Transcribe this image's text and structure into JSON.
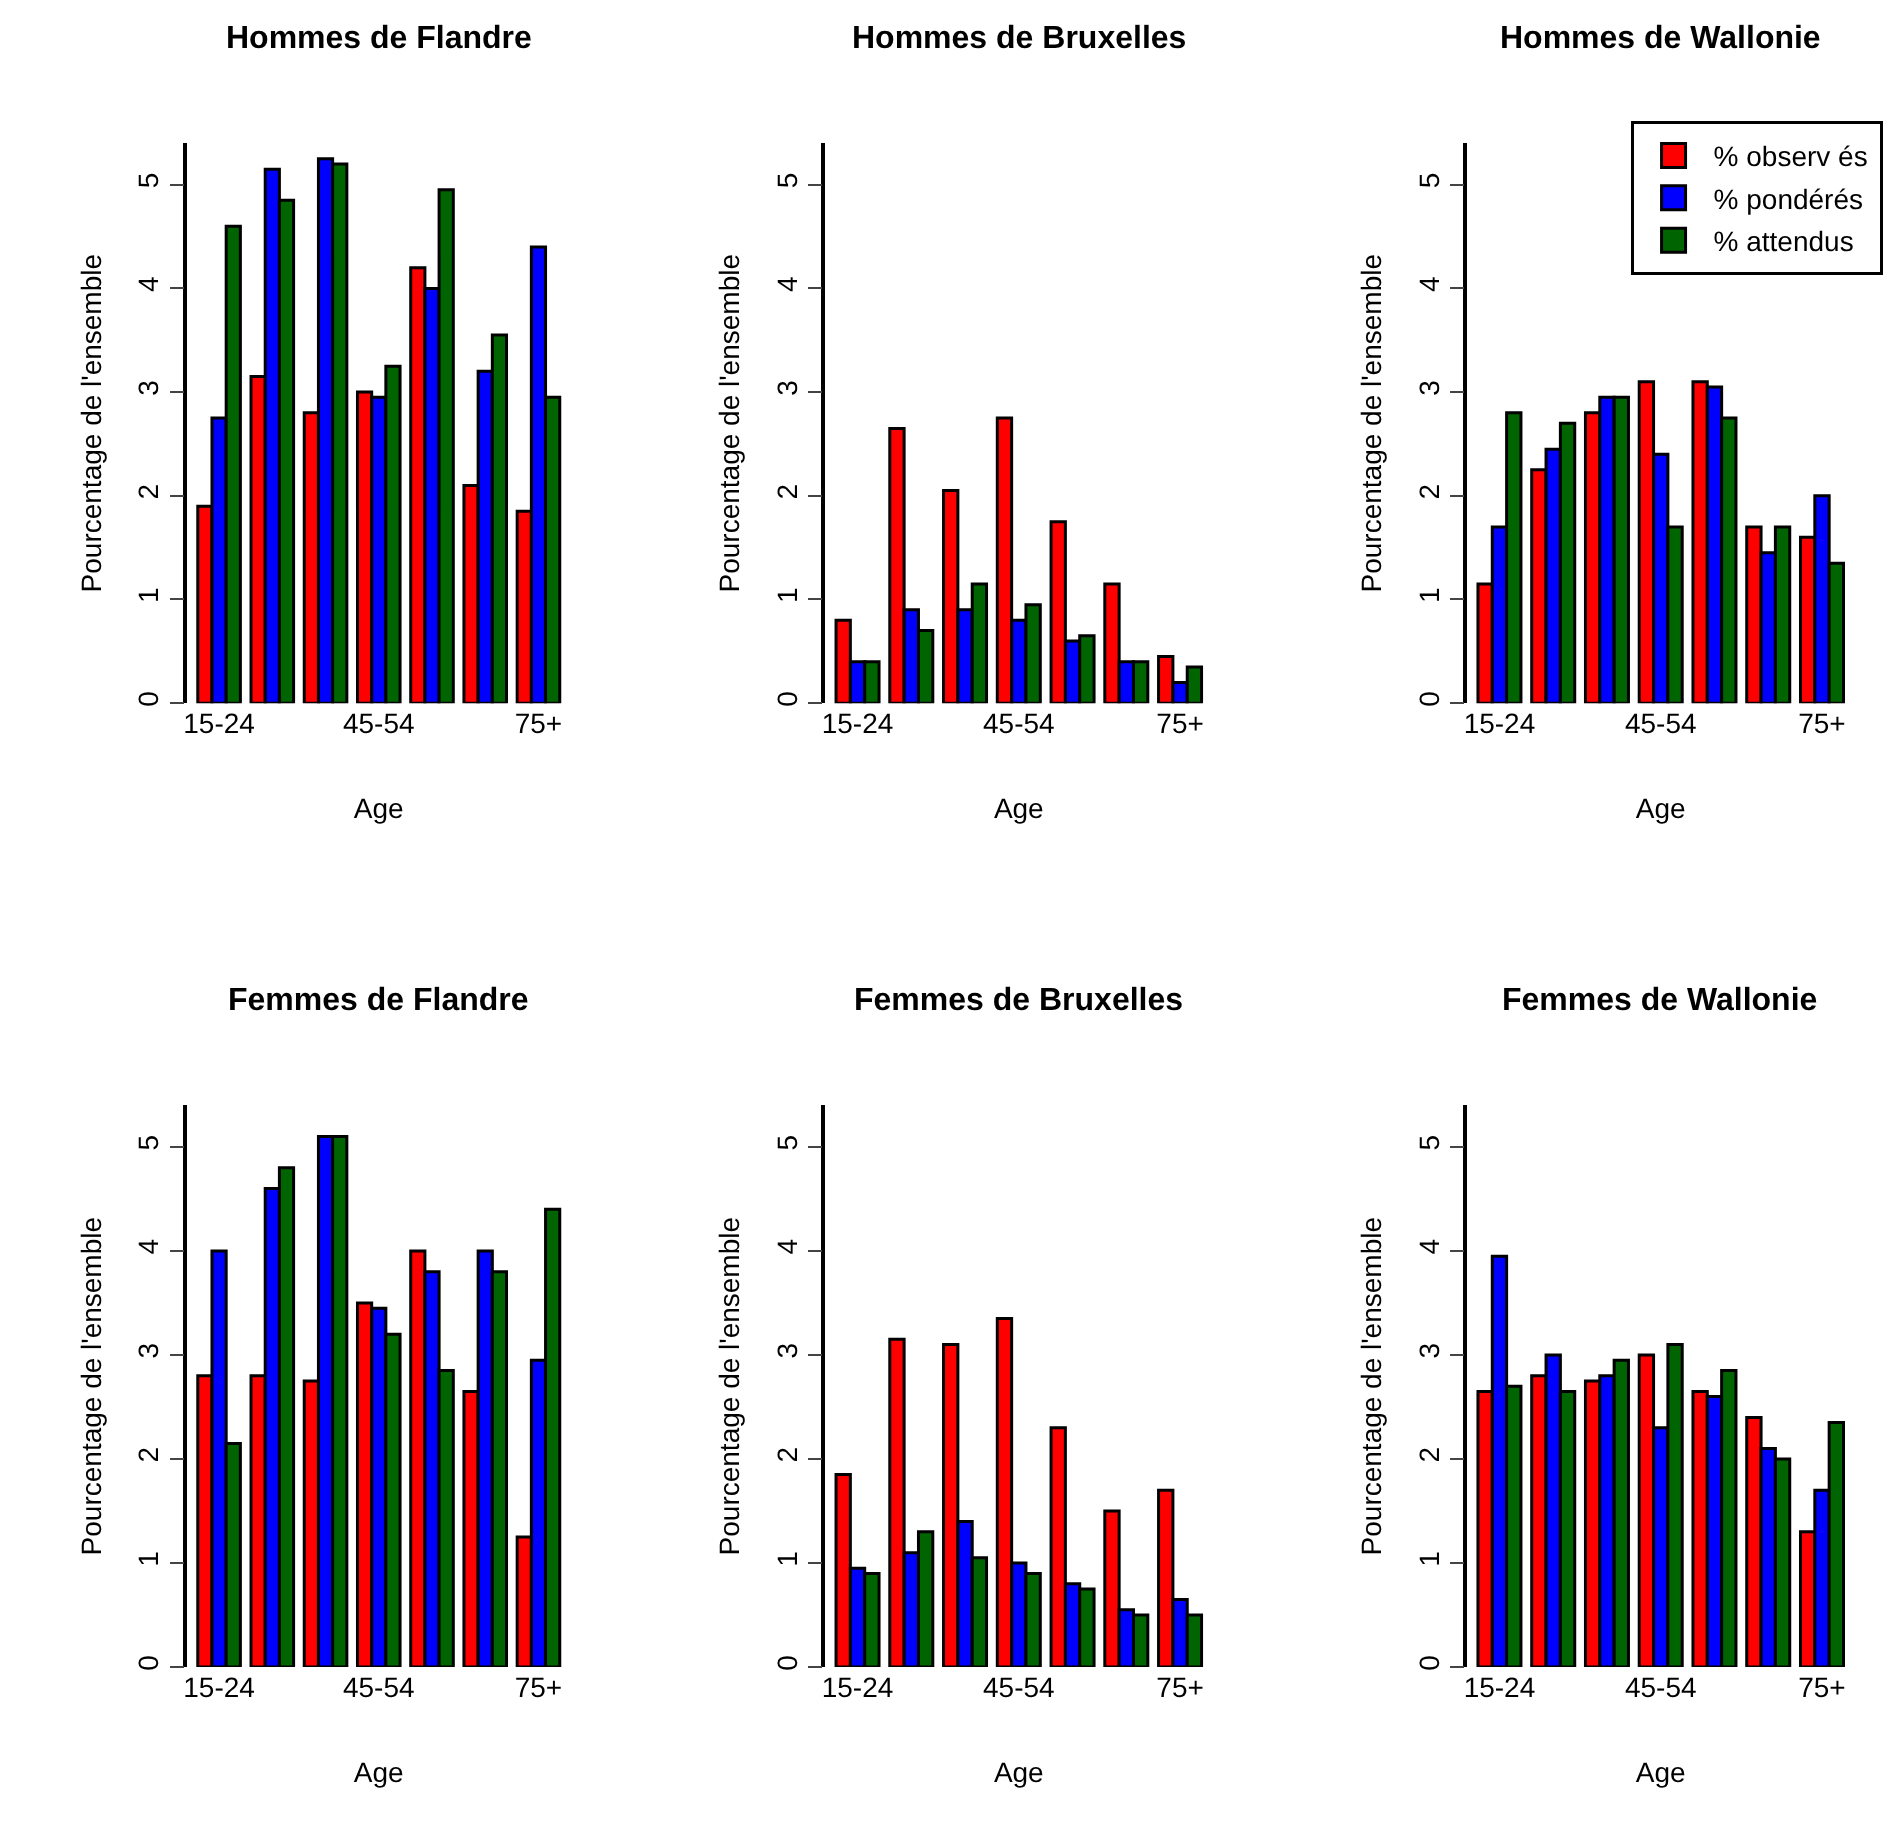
{
  "chart_data": [
    {
      "type": "bar",
      "title": "Hommes de Flandre",
      "xlabel": "Age",
      "ylabel": "Pourcentage de l'ensemble",
      "categories": [
        "15-24",
        null,
        null,
        "45-54",
        null,
        null,
        "75+"
      ],
      "ylim": [
        0,
        5.4
      ],
      "yticks": [
        0,
        1,
        2,
        3,
        4,
        5
      ],
      "legend": false,
      "series": [
        {
          "color": "#ff0000",
          "values": [
            1.9,
            3.15,
            2.8,
            3.0,
            4.2,
            2.1,
            1.85
          ]
        },
        {
          "color": "#0000ff",
          "values": [
            2.75,
            5.15,
            5.25,
            2.95,
            4.0,
            3.2,
            4.4
          ]
        },
        {
          "color": "#006400",
          "values": [
            4.6,
            4.85,
            5.2,
            3.25,
            4.95,
            3.55,
            2.95
          ]
        }
      ]
    },
    {
      "type": "bar",
      "title": "Hommes de Bruxelles",
      "xlabel": "Age",
      "ylabel": "Pourcentage de l'ensemble",
      "categories": [
        "15-24",
        null,
        null,
        "45-54",
        null,
        null,
        "75+"
      ],
      "ylim": [
        0,
        5.4
      ],
      "yticks": [
        0,
        1,
        2,
        3,
        4,
        5
      ],
      "legend": false,
      "series": [
        {
          "color": "#ff0000",
          "values": [
            0.8,
            2.65,
            2.05,
            2.75,
            1.75,
            1.15,
            0.45
          ]
        },
        {
          "color": "#0000ff",
          "values": [
            0.4,
            0.9,
            0.9,
            0.8,
            0.6,
            0.4,
            0.2
          ]
        },
        {
          "color": "#006400",
          "values": [
            0.4,
            0.7,
            1.15,
            0.95,
            0.65,
            0.4,
            0.35
          ]
        }
      ]
    },
    {
      "type": "bar",
      "title": "Hommes de Wallonie",
      "xlabel": "Age",
      "ylabel": "Pourcentage de l'ensemble",
      "categories": [
        "15-24",
        null,
        null,
        "45-54",
        null,
        null,
        "75+"
      ],
      "ylim": [
        0,
        5.4
      ],
      "yticks": [
        0,
        1,
        2,
        3,
        4,
        5
      ],
      "legend": "top right",
      "series": [
        {
          "name": "% observ és",
          "color": "#ff0000",
          "values": [
            1.15,
            2.25,
            2.8,
            3.1,
            3.1,
            1.7,
            1.6
          ]
        },
        {
          "name": "% pondérés",
          "color": "#0000ff",
          "values": [
            1.7,
            2.45,
            2.95,
            2.4,
            3.05,
            1.45,
            2.0
          ]
        },
        {
          "name": "% attendus",
          "color": "#006400",
          "values": [
            2.8,
            2.7,
            2.95,
            1.7,
            2.75,
            1.7,
            1.35
          ]
        }
      ]
    },
    {
      "type": "bar",
      "title": "Femmes de Flandre",
      "xlabel": "Age",
      "ylabel": "Pourcentage de l'ensemble",
      "categories": [
        "15-24",
        null,
        null,
        "45-54",
        null,
        null,
        "75+"
      ],
      "ylim": [
        0,
        5.4
      ],
      "yticks": [
        0,
        1,
        2,
        3,
        4,
        5
      ],
      "legend": false,
      "series": [
        {
          "color": "#ff0000",
          "values": [
            2.8,
            2.8,
            2.75,
            3.5,
            4.0,
            2.65,
            1.25
          ]
        },
        {
          "color": "#0000ff",
          "values": [
            4.0,
            4.6,
            5.1,
            3.45,
            3.8,
            4.0,
            2.95
          ]
        },
        {
          "color": "#006400",
          "values": [
            2.15,
            4.8,
            5.1,
            3.2,
            2.85,
            3.8,
            4.4
          ]
        }
      ]
    },
    {
      "type": "bar",
      "title": "Femmes de Bruxelles",
      "xlabel": "Age",
      "ylabel": "Pourcentage de l'ensemble",
      "categories": [
        "15-24",
        null,
        null,
        "45-54",
        null,
        null,
        "75+"
      ],
      "ylim": [
        0,
        5.4
      ],
      "yticks": [
        0,
        1,
        2,
        3,
        4,
        5
      ],
      "legend": false,
      "series": [
        {
          "color": "#ff0000",
          "values": [
            1.85,
            3.15,
            3.1,
            3.35,
            2.3,
            1.5,
            1.7
          ]
        },
        {
          "color": "#0000ff",
          "values": [
            0.95,
            1.1,
            1.4,
            1.0,
            0.8,
            0.55,
            0.65
          ]
        },
        {
          "color": "#006400",
          "values": [
            0.9,
            1.3,
            1.05,
            0.9,
            0.75,
            0.5,
            0.5
          ]
        }
      ]
    },
    {
      "type": "bar",
      "title": "Femmes de Wallonie",
      "xlabel": "Age",
      "ylabel": "Pourcentage de l'ensemble",
      "categories": [
        "15-24",
        null,
        null,
        "45-54",
        null,
        null,
        "75+"
      ],
      "ylim": [
        0,
        5.4
      ],
      "yticks": [
        0,
        1,
        2,
        3,
        4,
        5
      ],
      "legend": false,
      "series": [
        {
          "color": "#ff0000",
          "values": [
            2.65,
            2.8,
            2.75,
            3.0,
            2.65,
            2.4,
            1.3
          ]
        },
        {
          "color": "#0000ff",
          "values": [
            3.95,
            3.0,
            2.8,
            2.3,
            2.6,
            2.1,
            1.7
          ]
        },
        {
          "color": "#006400",
          "values": [
            2.7,
            2.65,
            2.95,
            3.1,
            2.85,
            2.0,
            2.35
          ]
        }
      ]
    }
  ]
}
